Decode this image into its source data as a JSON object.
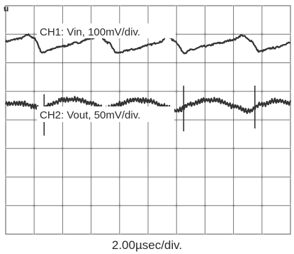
{
  "chart_data": {
    "type": "line",
    "title": "",
    "marker": "u",
    "grid": true,
    "divisions": {
      "x": 10,
      "y": 8
    },
    "xlabel": "2.00µsec/div.",
    "x_unit": "div",
    "xlim": [
      0,
      10
    ],
    "series": [
      {
        "name": "CH1: Vin, 100mV/div.",
        "label": "CH1: Vin, 100mV/div.",
        "unit": "div",
        "ylim": [
          -4,
          4
        ],
        "x": [
          0.0,
          0.5,
          0.8,
          1.0,
          1.3,
          1.5,
          2.0,
          2.5,
          3.0,
          3.3,
          3.6,
          3.9,
          4.5,
          5.0,
          5.4,
          5.7,
          5.9,
          6.3,
          6.5,
          7.0,
          7.5,
          8.0,
          8.3,
          8.6,
          8.9,
          9.4,
          10.0
        ],
        "values": [
          2.75,
          2.85,
          2.98,
          2.85,
          2.35,
          2.45,
          2.58,
          2.7,
          2.86,
          2.94,
          2.7,
          2.35,
          2.47,
          2.62,
          2.72,
          2.93,
          2.78,
          2.35,
          2.45,
          2.58,
          2.69,
          2.81,
          2.96,
          2.78,
          2.4,
          2.52,
          2.7
        ]
      },
      {
        "name": "CH2: Vout, 50mV/div.",
        "label": "CH2: Vout, 50mV/div.",
        "unit": "div",
        "ylim": [
          -4,
          4
        ],
        "x": [
          0.0,
          0.5,
          1.0,
          1.3,
          1.5,
          2.0,
          2.5,
          3.0,
          3.5,
          4.0,
          4.5,
          5.0,
          5.5,
          6.0,
          6.5,
          7.0,
          7.5,
          8.0,
          8.5,
          9.0,
          9.5,
          10.0
        ],
        "values": [
          0.55,
          0.6,
          0.48,
          0.3,
          0.52,
          0.7,
          0.72,
          0.6,
          0.38,
          0.55,
          0.7,
          0.68,
          0.5,
          0.32,
          0.55,
          0.7,
          0.68,
          0.48,
          0.3,
          0.55,
          0.68,
          0.6
        ],
        "spikes": [
          {
            "x": 1.35,
            "min": -0.55,
            "max": 0.9
          },
          {
            "x": 6.25,
            "min": -0.4,
            "max": 1.2
          },
          {
            "x": 8.75,
            "min": -0.3,
            "max": 1.2
          }
        ]
      }
    ]
  }
}
